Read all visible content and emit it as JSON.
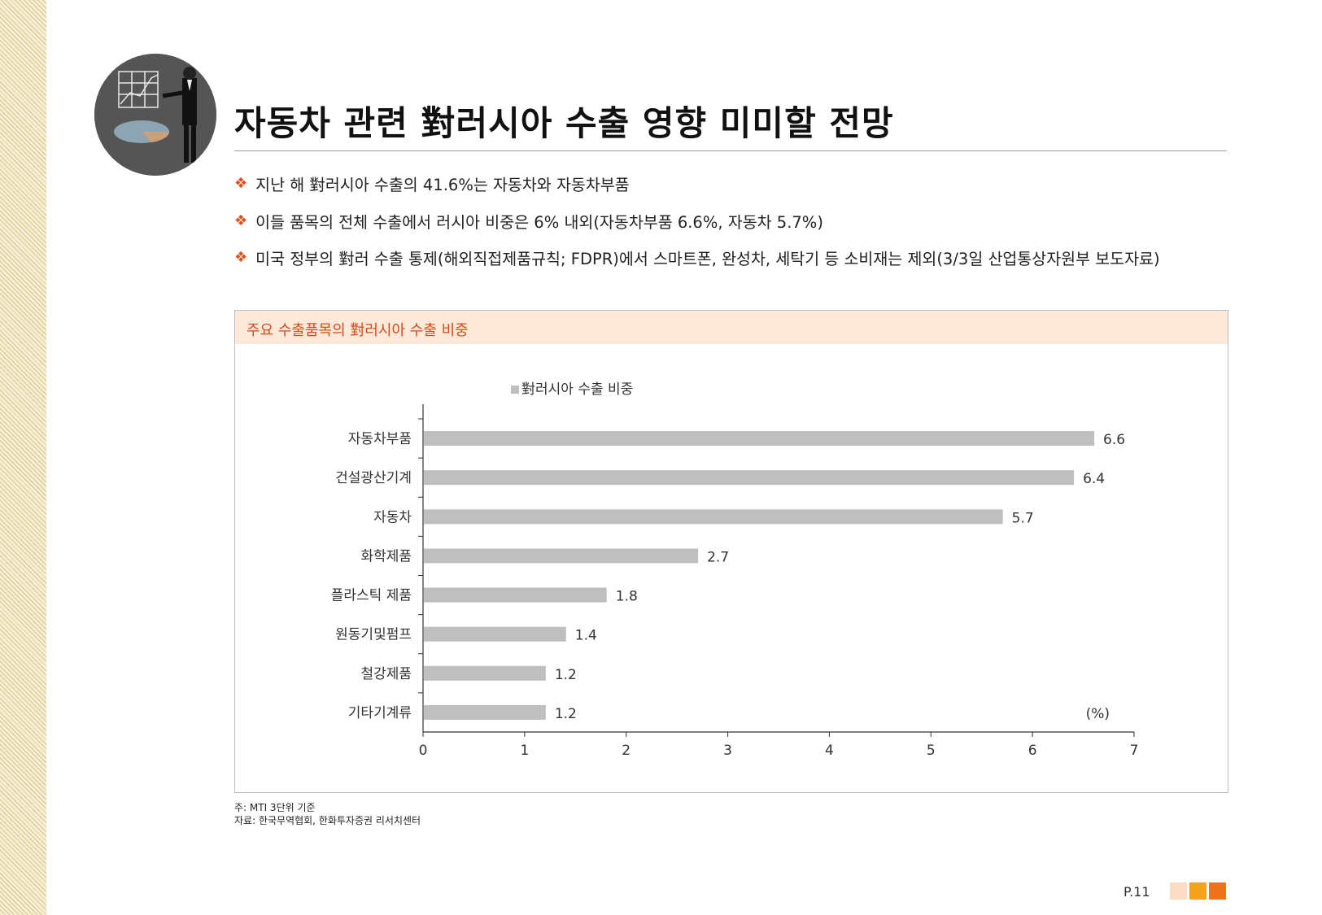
{
  "page": {
    "title": "자동차 관련 對러시아 수출 영향 미미할 전망",
    "bullets": [
      "지난 해 對러시아 수출의 41.6%는 자동차와 자동차부품",
      "이들 품목의 전체 수출에서 러시아 비중은 6% 내외(자동차부품 6.6%, 자동차 5.7%)",
      "미국 정부의 對러 수출 통제(해외직접제품규칙; FDPR)에서 스마트폰, 완성차, 세탁기 등 소비재는 제외(3/3일 산업통상자원부 보도자료)"
    ],
    "bullet_mark": "❖",
    "chart_header": "주요 수출품목의 對러시아 수출 비중",
    "notes": {
      "note": "주: MTI 3단위 기준",
      "source": "자료: 한국무역협회, 한화투자증권 리서치센터"
    },
    "page_number": "P.11"
  },
  "colors": {
    "accent": "#e0501a",
    "header_bg": "#fde9d9",
    "bar": "#bfbfbf",
    "squares": [
      "#fbdcc4",
      "#f5a31a",
      "#f07218"
    ]
  },
  "chart_data": {
    "type": "bar",
    "orientation": "horizontal",
    "categories": [
      "자동차부품",
      "건설광산기계",
      "자동차",
      "화학제품",
      "플라스틱 제품",
      "원동기및펌프",
      "철강제품",
      "기타기계류"
    ],
    "series": [
      {
        "name": "對러시아 수출 비중",
        "values": [
          6.6,
          6.4,
          5.7,
          2.7,
          1.8,
          1.4,
          1.2,
          1.2
        ]
      }
    ],
    "xlim": [
      0,
      7
    ],
    "xticks": [
      "0",
      "1",
      "2",
      "3",
      "4",
      "5",
      "6",
      "7"
    ],
    "unit_label": "(%)",
    "legend_position": "top-center",
    "grid": false
  }
}
